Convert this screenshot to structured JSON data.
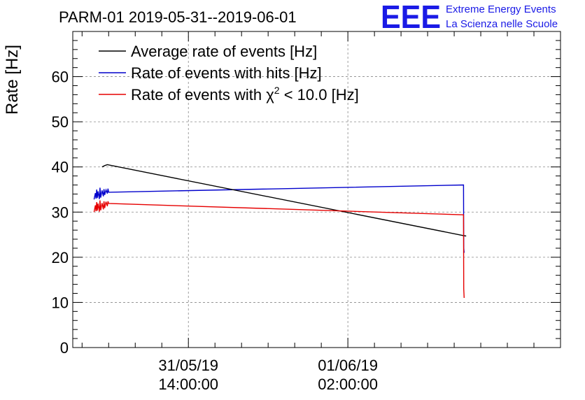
{
  "chart_data": {
    "type": "line",
    "title": "PARM-01 2019-05-31--2019-06-01",
    "xlabel": "",
    "ylabel": "Rate [Hz]",
    "ylim": [
      0,
      70
    ],
    "yticks": [
      0,
      10,
      20,
      30,
      40,
      50,
      60
    ],
    "xlim_hours": [
      0,
      36.7
    ],
    "xticks": [
      {
        "hours": 8.7,
        "date": "31/05/19",
        "time": "14:00:00"
      },
      {
        "hours": 20.7,
        "date": "01/06/19",
        "time": "02:00:00"
      }
    ],
    "grid": true,
    "legend_position": "top-left",
    "series": [
      {
        "name": "Average rate of events [Hz]",
        "color": "#000000",
        "x": [
          2.2,
          2.4,
          2.6,
          29.4,
          29.6
        ],
        "y": [
          40.0,
          40.3,
          40.5,
          24.8,
          24.7
        ]
      },
      {
        "name": "Rate of events with hits [Hz]",
        "color": "#0000cc",
        "x": [
          1.6,
          1.7,
          1.75,
          1.8,
          1.85,
          1.9,
          2.0,
          2.05,
          2.1,
          2.2,
          2.3,
          2.35,
          2.4,
          2.5,
          2.6,
          2.65,
          2.7,
          29.4,
          29.42,
          29.45
        ],
        "y": [
          32.8,
          34.2,
          33.0,
          35.0,
          33.1,
          34.6,
          32.9,
          35.4,
          33.2,
          34.8,
          33.5,
          35.1,
          33.8,
          34.9,
          34.1,
          35.2,
          34.4,
          36.0,
          22.0,
          21.0
        ]
      },
      {
        "name": "Rate of events with χ² < 10.0 [Hz]",
        "color": "#e60000",
        "x": [
          1.6,
          1.7,
          1.75,
          1.8,
          1.85,
          1.9,
          2.0,
          2.05,
          2.1,
          2.2,
          2.3,
          2.35,
          2.4,
          2.5,
          2.6,
          2.65,
          2.7,
          29.4,
          29.42,
          29.45
        ],
        "y": [
          30.0,
          31.5,
          30.2,
          32.2,
          30.3,
          31.9,
          30.1,
          32.6,
          30.4,
          32.0,
          30.6,
          32.4,
          30.9,
          32.3,
          31.3,
          32.4,
          31.9,
          29.4,
          13.0,
          11.0
        ]
      }
    ],
    "legend_entries": {
      "average": "Average rate of events [Hz]",
      "hits": "Rate of events with hits [Hz]",
      "chi_prefix": "Rate of events with ",
      "chi_symbol": "χ",
      "chi_sup": "2",
      "chi_suffix": " < 10.0 [Hz]"
    }
  },
  "logo": {
    "text": "EEE",
    "line1": "Extreme Energy Events",
    "line2": "La Scienza nelle Scuole"
  }
}
